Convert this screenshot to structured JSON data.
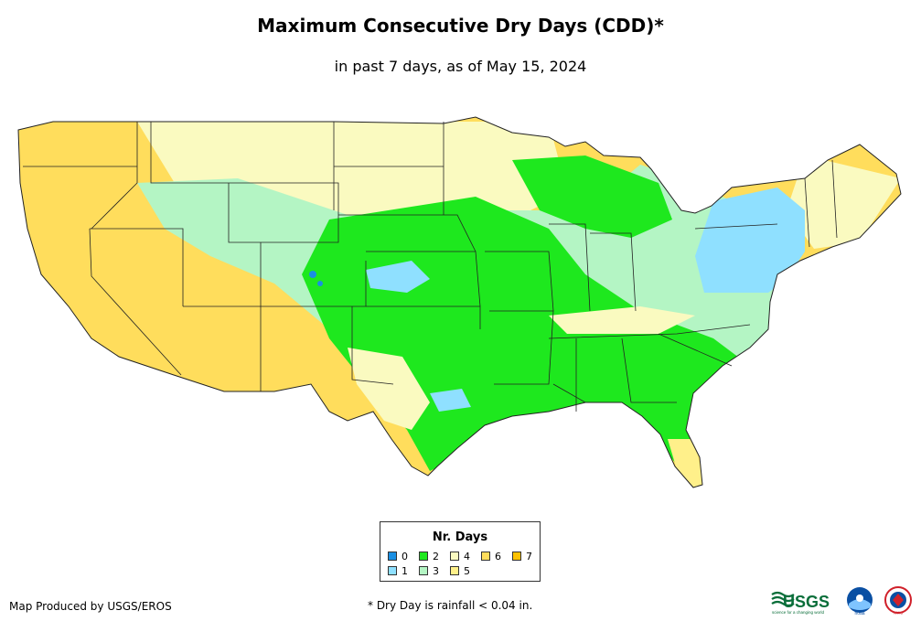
{
  "title": "Maximum Consecutive Dry Days (CDD)*",
  "subtitle": "in past 7 days, as of May 15, 2024",
  "legend": {
    "title": "Nr. Days",
    "items": [
      {
        "label": "0",
        "color": "#1a8fe3"
      },
      {
        "label": "1",
        "color": "#8fe0ff"
      },
      {
        "label": "2",
        "color": "#1ee81e"
      },
      {
        "label": "3",
        "color": "#b4f5c4"
      },
      {
        "label": "4",
        "color": "#fafac0"
      },
      {
        "label": "5",
        "color": "#fff08a"
      },
      {
        "label": "6",
        "color": "#ffdd5c"
      },
      {
        "label": "7",
        "color": "#fdc100"
      }
    ]
  },
  "footer": {
    "producer": "Map Produced by USGS/EROS",
    "note": "* Dry Day is rainfall < 0.04 in."
  },
  "logos": {
    "usgs": "USGS",
    "usgs_tagline": "science for a changing world",
    "noaa": "noaa",
    "nws": "NWS"
  }
}
